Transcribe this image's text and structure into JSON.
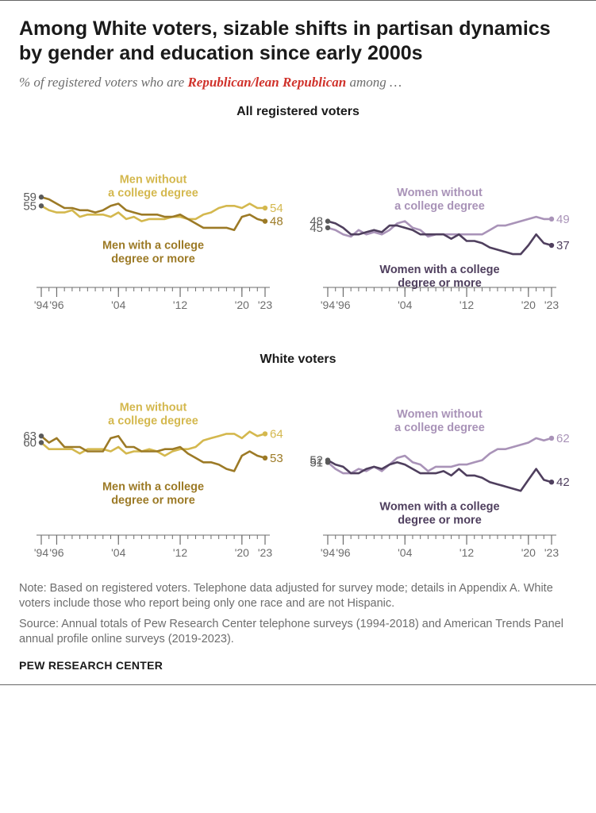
{
  "title": "Among White voters, sizable shifts in partisan dynamics by gender and education since early 2000s",
  "subtitle_prefix": "% of registered voters who are ",
  "subtitle_emph": "Republican/lean Republican",
  "subtitle_suffix": " among …",
  "emph_color": "#d0322b",
  "panels": [
    {
      "title": "All registered voters"
    },
    {
      "title": "White voters"
    }
  ],
  "axis": {
    "year_ticks": [
      "'94",
      "'96",
      "'04",
      "'12",
      "'20",
      "'23"
    ],
    "year_tick_values": [
      1994,
      1996,
      2004,
      2012,
      2020,
      2023
    ],
    "ylim": [
      20,
      75
    ],
    "xlim": [
      1994,
      2023
    ],
    "tick_color": "#6d6d6d"
  },
  "colors": {
    "men_no_deg": "#d4b84e",
    "men_deg": "#9c7a26",
    "women_no_deg": "#a993b8",
    "women_deg": "#4f3f5e",
    "start_dot": "#5a5a5a"
  },
  "line_width": 2.6,
  "charts": {
    "all_men": {
      "series": [
        {
          "key": "men_no_deg",
          "label_lines": [
            "Men without",
            "a college degree"
          ],
          "label_pos": "top",
          "start_val": 55,
          "end_val": 54,
          "values": [
            55,
            53,
            52,
            52,
            53,
            50,
            51,
            51,
            51,
            50,
            52,
            49,
            50,
            48,
            49,
            49,
            49,
            50,
            50,
            49,
            49,
            51,
            52,
            54,
            55,
            55,
            54,
            56,
            54,
            54
          ]
        },
        {
          "key": "men_deg",
          "label_lines": [
            "Men with a college",
            "degree or more"
          ],
          "label_pos": "bottom",
          "start_val": 59,
          "end_val": 48,
          "values": [
            59,
            58,
            56,
            54,
            54,
            53,
            53,
            52,
            53,
            55,
            56,
            53,
            52,
            51,
            51,
            51,
            50,
            50,
            51,
            49,
            47,
            45,
            45,
            45,
            45,
            44,
            50,
            51,
            49,
            48
          ]
        }
      ]
    },
    "all_women": {
      "series": [
        {
          "key": "women_no_deg",
          "label_lines": [
            "Women without",
            "a college degree"
          ],
          "label_pos": "top",
          "start_val": 45,
          "end_val": 49,
          "values": [
            45,
            44,
            42,
            41,
            44,
            42,
            43,
            42,
            44,
            47,
            48,
            45,
            44,
            41,
            42,
            42,
            42,
            42,
            42,
            42,
            42,
            44,
            46,
            46,
            47,
            48,
            49,
            50,
            49,
            49
          ]
        },
        {
          "key": "women_deg",
          "label_lines": [
            "Women with a college",
            "degree or more"
          ],
          "label_pos": "bottom",
          "start_val": 48,
          "end_val": 37,
          "values": [
            48,
            47,
            45,
            42,
            42,
            43,
            44,
            43,
            46,
            46,
            45,
            44,
            42,
            42,
            42,
            42,
            40,
            42,
            39,
            39,
            38,
            36,
            35,
            34,
            33,
            33,
            37,
            42,
            38,
            37
          ]
        }
      ]
    },
    "white_men": {
      "series": [
        {
          "key": "men_no_deg",
          "label_lines": [
            "Men without",
            "a college degree"
          ],
          "label_pos": "top",
          "start_val": 60,
          "end_val": 64,
          "values": [
            60,
            57,
            57,
            57,
            57,
            55,
            57,
            57,
            57,
            56,
            58,
            55,
            56,
            56,
            57,
            56,
            54,
            56,
            57,
            57,
            58,
            61,
            62,
            63,
            64,
            64,
            62,
            65,
            63,
            64
          ]
        },
        {
          "key": "men_deg",
          "label_lines": [
            "Men with a college",
            "degree or more"
          ],
          "label_pos": "bottom",
          "start_val": 63,
          "end_val": 53,
          "values": [
            63,
            60,
            62,
            58,
            58,
            58,
            56,
            56,
            56,
            62,
            63,
            58,
            58,
            56,
            56,
            56,
            57,
            57,
            58,
            55,
            53,
            51,
            51,
            50,
            48,
            47,
            54,
            56,
            54,
            53
          ]
        }
      ]
    },
    "white_women": {
      "series": [
        {
          "key": "women_no_deg",
          "label_lines": [
            "Women without",
            "a college degree"
          ],
          "label_pos": "top",
          "start_val": 51,
          "end_val": 62,
          "values": [
            51,
            48,
            46,
            46,
            48,
            47,
            49,
            47,
            50,
            53,
            54,
            51,
            50,
            47,
            49,
            49,
            49,
            50,
            50,
            51,
            52,
            55,
            57,
            57,
            58,
            59,
            60,
            62,
            61,
            62
          ]
        },
        {
          "key": "women_deg",
          "label_lines": [
            "Women with a college",
            "degree or more"
          ],
          "label_pos": "bottom",
          "start_val": 52,
          "end_val": 42,
          "values": [
            52,
            50,
            49,
            46,
            46,
            48,
            49,
            48,
            50,
            51,
            50,
            48,
            46,
            46,
            46,
            47,
            45,
            48,
            45,
            45,
            44,
            42,
            41,
            40,
            39,
            38,
            43,
            48,
            43,
            42
          ]
        }
      ]
    }
  },
  "note": "Note: Based on registered voters. Telephone data adjusted for survey mode; details in Appendix A. White voters include those who report being only one race and are not Hispanic.",
  "source": "Source: Annual totals of Pew Research Center telephone surveys (1994-2018) and American Trends Panel annual profile online surveys (2019-2023).",
  "credit": "PEW RESEARCH CENTER"
}
